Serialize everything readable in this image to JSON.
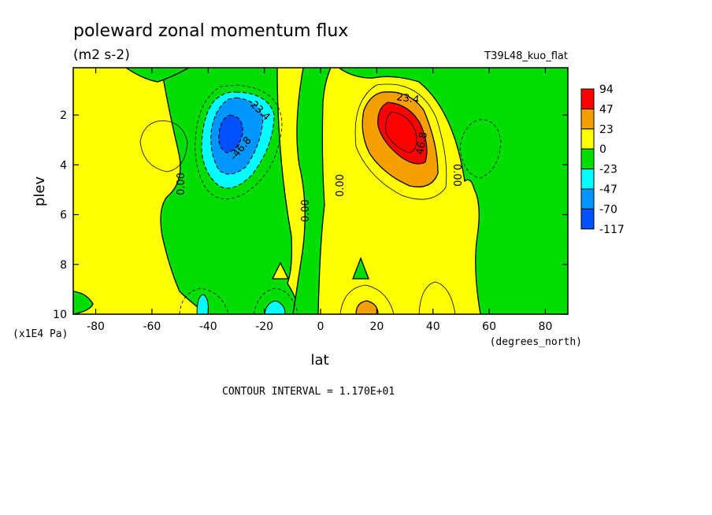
{
  "chart_data": {
    "type": "heatmap",
    "title": "poleward zonal momentum flux",
    "subtitle": "(m2 s-2)",
    "run_label": "T39L48_kuo_flat",
    "xlabel": "lat",
    "xunits": "(degrees_north)",
    "ylabel": "plev",
    "yunits": "(x1E4 Pa)",
    "xlim": [
      -88,
      88
    ],
    "ylim": [
      10,
      0.1
    ],
    "y_inverted": true,
    "x_ticks": [
      -80,
      -60,
      -40,
      -20,
      0,
      20,
      40,
      60,
      80
    ],
    "x_tick_labels": [
      "-80",
      "-60",
      "-40",
      "-20",
      "0",
      "20",
      "40",
      "60",
      "80"
    ],
    "y_ticks": [
      2,
      4,
      6,
      8,
      10
    ],
    "y_tick_labels": [
      "2",
      "4",
      "6",
      "8",
      "10"
    ],
    "contour_interval_text": "CONTOUR INTERVAL = 1.170E+01",
    "colorbar": {
      "levels": [
        "94",
        "47",
        "23",
        "0",
        "-23",
        "-47",
        "-70",
        "-117"
      ],
      "colors": [
        "#ff0000",
        "#f5a000",
        "#ffff00",
        "#00dd00",
        "#00ffff",
        "#0096ff",
        "#0050ff"
      ]
    },
    "contour_labels": [
      "23.4",
      "46.8",
      "-23.4",
      "-46.8",
      "0.00",
      "0.00",
      "0.00",
      "0.00"
    ],
    "features": [
      {
        "kind": "max",
        "lat": 30,
        "plev": 2.9,
        "value": 94
      },
      {
        "kind": "min",
        "lat": -30,
        "plev": 2.8,
        "value": -117
      }
    ],
    "grid": false
  }
}
